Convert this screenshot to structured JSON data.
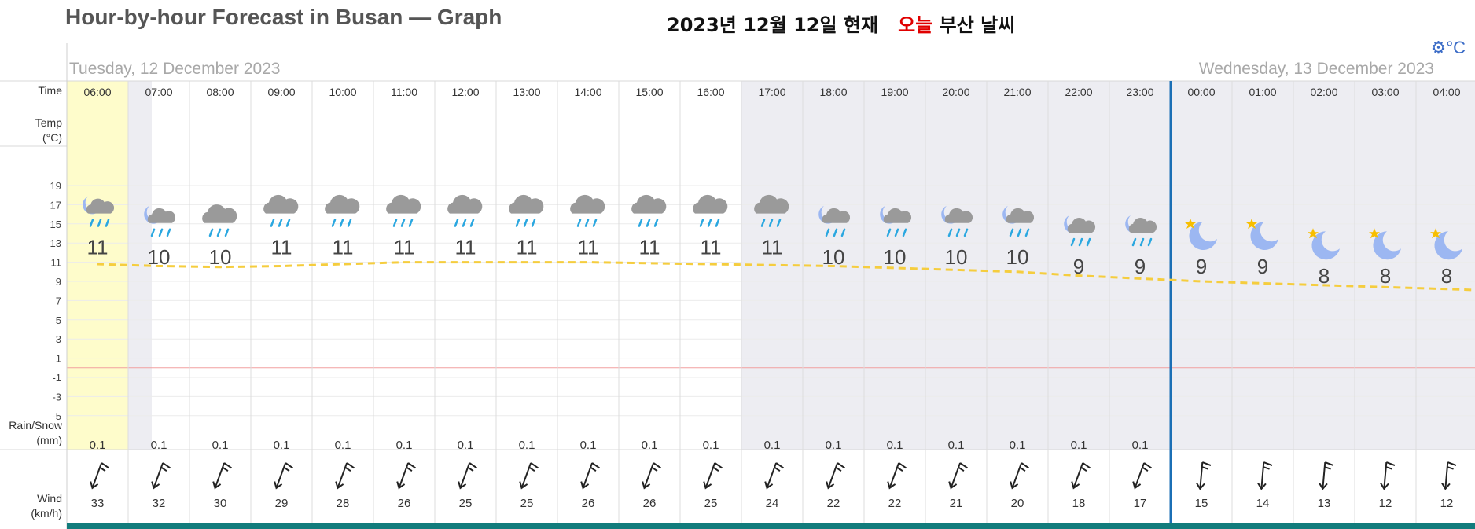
{
  "header": {
    "title": "Hour-by-hour Forecast in Busan — Graph",
    "korean_prefix": "2023년 12월 12일 현재",
    "korean_today": "오늘",
    "korean_suffix": "부산 날씨",
    "unit_toggle": "°C",
    "settings_icon": "gear-icon"
  },
  "days": [
    "Tuesday, 12 December 2023",
    "Wednesday, 13 December 2023"
  ],
  "row_labels": {
    "time": "Time",
    "temp": "Temp\n(°C)",
    "rain": "Rain/Snow\n(mm)",
    "wind": "Wind\n(km/h)"
  },
  "y_axis_ticks": [
    "19",
    "17",
    "15",
    "13",
    "11",
    "9",
    "7",
    "5",
    "3",
    "1",
    "-1",
    "-3",
    "-5"
  ],
  "hours": [
    "06:00",
    "07:00",
    "08:00",
    "09:00",
    "10:00",
    "11:00",
    "12:00",
    "13:00",
    "14:00",
    "15:00",
    "16:00",
    "17:00",
    "18:00",
    "19:00",
    "20:00",
    "21:00",
    "22:00",
    "23:00",
    "00:00",
    "01:00",
    "02:00",
    "03:00",
    "04:00"
  ],
  "icons": [
    "night-rain",
    "night-rain",
    "rain",
    "rain",
    "rain",
    "rain",
    "rain",
    "rain",
    "rain",
    "rain",
    "rain",
    "rain",
    "night-rain",
    "night-rain",
    "night-rain",
    "night-rain",
    "night-rain",
    "night-rain",
    "clear-night",
    "clear-night",
    "clear-night",
    "clear-night",
    "clear-night"
  ],
  "temps": [
    11,
    10,
    10,
    11,
    11,
    11,
    11,
    11,
    11,
    11,
    11,
    11,
    10,
    10,
    10,
    10,
    9,
    9,
    9,
    9,
    8,
    8,
    8
  ],
  "rain": [
    "0.1",
    "0.1",
    "0.1",
    "0.1",
    "0.1",
    "0.1",
    "0.1",
    "0.1",
    "0.1",
    "0.1",
    "0.1",
    "0.1",
    "0.1",
    "0.1",
    "0.1",
    "0.1",
    "0.1",
    "0.1",
    "",
    "",
    "",
    "",
    ""
  ],
  "wind": [
    33,
    32,
    30,
    29,
    28,
    26,
    25,
    25,
    26,
    26,
    25,
    24,
    22,
    22,
    21,
    20,
    18,
    17,
    15,
    14,
    13,
    12,
    12
  ],
  "colors": {
    "current_hour": "#fefccb",
    "night_shade": "#ededf2",
    "temp_line": "#f5cd3e",
    "zero_line": "#f2a0a0",
    "day_divider": "#1b6fb5",
    "bottom_bar": "#127c7c",
    "rain_drop": "#2aa7e0",
    "cloud": "#9a9a9a",
    "moon": "#9cb7f2",
    "star": "#f7be00"
  }
}
